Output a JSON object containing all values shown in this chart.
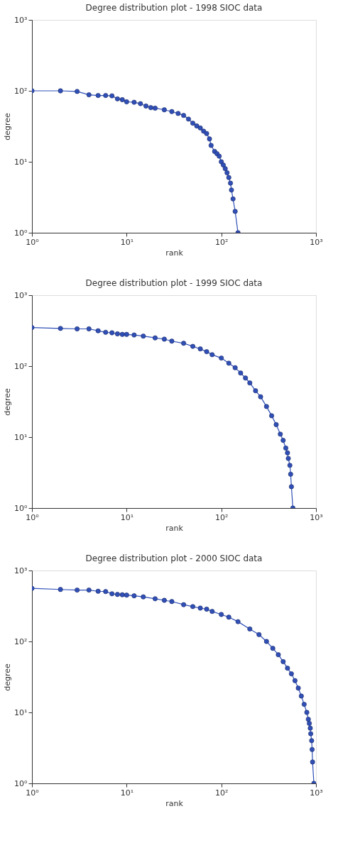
{
  "chart_data": [
    {
      "type": "line",
      "title": "Degree distribution plot - 1998 SIOC data",
      "xlabel": "rank",
      "ylabel": "degree",
      "log": "xy",
      "marker": "circle",
      "line_style": "solid",
      "grid": false,
      "xlim": [
        1,
        1000
      ],
      "ylim": [
        1,
        1000
      ],
      "xticks": [
        {
          "value": 1,
          "label": "10⁰"
        },
        {
          "value": 10,
          "label": "10¹"
        },
        {
          "value": 100,
          "label": "10²"
        },
        {
          "value": 1000,
          "label": "10³"
        }
      ],
      "yticks": [
        {
          "value": 1,
          "label": "10⁰"
        },
        {
          "value": 10,
          "label": "10¹"
        },
        {
          "value": 100,
          "label": "10²"
        },
        {
          "value": 1000,
          "label": "10³"
        }
      ],
      "series": [
        {
          "color": "#3050b8",
          "x": [
            1,
            2,
            3,
            4,
            5,
            6,
            7,
            8,
            9,
            10,
            12,
            14,
            16,
            18,
            20,
            25,
            30,
            35,
            40,
            45,
            50,
            55,
            60,
            65,
            70,
            75,
            78,
            85,
            90,
            95,
            100,
            105,
            110,
            115,
            120,
            125,
            128,
            133,
            140,
            150
          ],
          "values": [
            100,
            100,
            98,
            88,
            86,
            86,
            85,
            77,
            75,
            70,
            69,
            66,
            61,
            58,
            57,
            54,
            51,
            48,
            45,
            40,
            35,
            32,
            30,
            27,
            25,
            21,
            17,
            14,
            13,
            12,
            10,
            9,
            8,
            7,
            6,
            5,
            4,
            3,
            2,
            1
          ]
        }
      ]
    },
    {
      "type": "line",
      "title": "Degree distribution plot - 1999 SIOC data",
      "xlabel": "rank",
      "ylabel": "degree",
      "log": "xy",
      "marker": "circle",
      "line_style": "solid",
      "grid": false,
      "xlim": [
        1,
        1000
      ],
      "ylim": [
        1,
        1000
      ],
      "xticks": [
        {
          "value": 1,
          "label": "10⁰"
        },
        {
          "value": 10,
          "label": "10¹"
        },
        {
          "value": 100,
          "label": "10²"
        },
        {
          "value": 1000,
          "label": "10³"
        }
      ],
      "yticks": [
        {
          "value": 1,
          "label": "10⁰"
        },
        {
          "value": 10,
          "label": "10¹"
        },
        {
          "value": 100,
          "label": "10²"
        },
        {
          "value": 1000,
          "label": "10³"
        }
      ],
      "series": [
        {
          "color": "#3050b8",
          "x": [
            1,
            2,
            3,
            4,
            5,
            6,
            7,
            8,
            9,
            10,
            12,
            15,
            20,
            25,
            30,
            40,
            50,
            60,
            70,
            80,
            100,
            120,
            140,
            160,
            180,
            200,
            230,
            260,
            300,
            340,
            380,
            420,
            450,
            480,
            500,
            510,
            530,
            540,
            550,
            570
          ],
          "values": [
            350,
            340,
            335,
            335,
            315,
            300,
            295,
            285,
            280,
            280,
            275,
            265,
            250,
            240,
            225,
            210,
            190,
            175,
            160,
            145,
            130,
            110,
            95,
            80,
            68,
            58,
            45,
            37,
            27,
            20,
            15,
            11,
            9,
            7,
            6,
            5,
            4,
            3,
            2,
            1
          ]
        }
      ]
    },
    {
      "type": "line",
      "title": "Degree distribution plot - 2000 SIOC data",
      "xlabel": "rank",
      "ylabel": "degree",
      "log": "xy",
      "marker": "circle",
      "line_style": "solid",
      "grid": false,
      "xlim": [
        1,
        1000
      ],
      "ylim": [
        1,
        1000
      ],
      "xticks": [
        {
          "value": 1,
          "label": "10⁰"
        },
        {
          "value": 10,
          "label": "10¹"
        },
        {
          "value": 100,
          "label": "10²"
        },
        {
          "value": 1000,
          "label": "10³"
        }
      ],
      "yticks": [
        {
          "value": 1,
          "label": "10⁰"
        },
        {
          "value": 10,
          "label": "10¹"
        },
        {
          "value": 100,
          "label": "10²"
        },
        {
          "value": 1000,
          "label": "10³"
        }
      ],
      "series": [
        {
          "color": "#3050b8",
          "x": [
            1,
            2,
            3,
            4,
            5,
            6,
            7,
            8,
            9,
            10,
            12,
            15,
            20,
            25,
            30,
            40,
            50,
            60,
            70,
            80,
            100,
            120,
            150,
            200,
            250,
            300,
            350,
            400,
            450,
            500,
            550,
            600,
            650,
            700,
            750,
            800,
            830,
            850,
            870,
            880,
            900,
            910,
            920,
            950
          ],
          "values": [
            560,
            540,
            530,
            530,
            510,
            505,
            470,
            460,
            455,
            450,
            440,
            425,
            400,
            380,
            365,
            330,
            310,
            295,
            285,
            265,
            240,
            220,
            190,
            150,
            125,
            100,
            80,
            65,
            52,
            42,
            35,
            28,
            22,
            17,
            13,
            10,
            8,
            7,
            6,
            5,
            4,
            3,
            2,
            1
          ]
        }
      ]
    }
  ]
}
